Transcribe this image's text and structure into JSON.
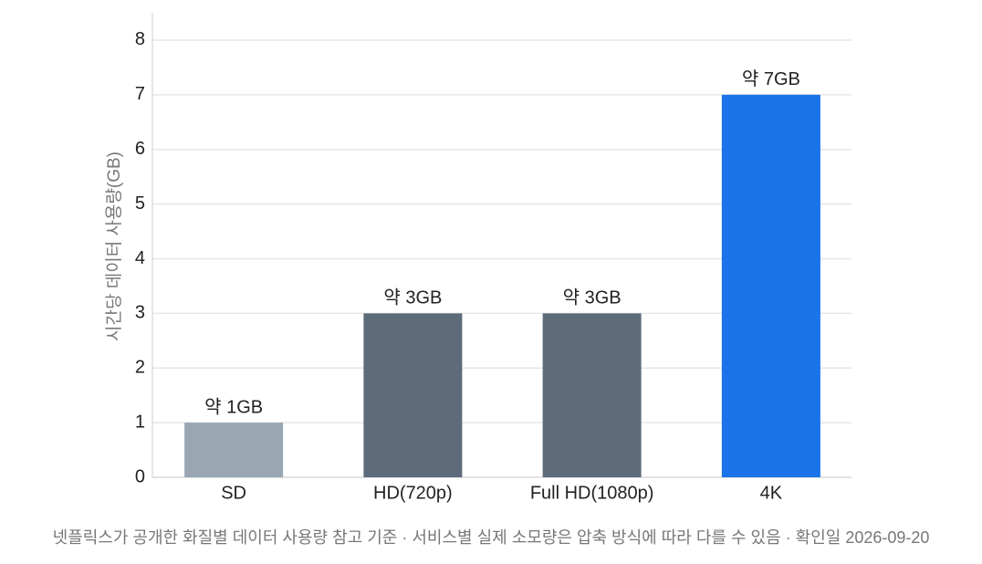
{
  "chart_data": {
    "type": "bar",
    "y_label": "시간당 데이터 사용량(GB)",
    "categories": [
      "SD",
      "HD(720p)",
      "Full HD(1080p)",
      "4K"
    ],
    "values": [
      1,
      3,
      3,
      7
    ],
    "value_labels": [
      "약 1GB",
      "약 3GB",
      "약 3GB",
      "약 7GB"
    ],
    "colors": [
      "#9aa7b3",
      "#5e6b7a",
      "#5e6b7a",
      "#1a73e8"
    ],
    "ylim": [
      0,
      8.5
    ],
    "yticks": [
      0,
      1,
      2,
      3,
      4,
      5,
      6,
      7,
      8
    ],
    "grid": true,
    "caption": "넷플릭스가 공개한 화질별 데이터 사용량 참고 기준 · 서비스별 실제 소모량은 압축 방식에 따라 다를 수 있음 · 확인일 2026-09-20"
  }
}
